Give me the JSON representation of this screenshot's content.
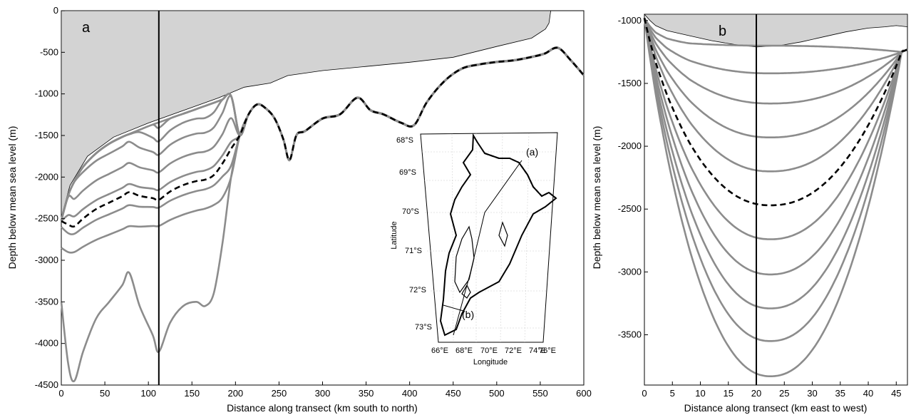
{
  "chart_data": [
    {
      "type": "line",
      "panel_label": "a",
      "xlabel": "Distance along transect (km  south to north)",
      "ylabel": "Depth below mean sea level (m)",
      "xlim": [
        0,
        600
      ],
      "ylim": [
        -4500,
        0
      ],
      "x_ticks": [
        "0",
        "50",
        "100",
        "150",
        "200",
        "250",
        "300",
        "350",
        "400",
        "450",
        "500",
        "550",
        "600"
      ],
      "y_ticks": [
        "0",
        "-500",
        "-1000",
        "-1500",
        "-2000",
        "-2500",
        "-3000",
        "-3500",
        "-4000",
        "-4500"
      ],
      "vertical_line_x": 112,
      "colors": {
        "shelf": "#d3d3d3",
        "iso": "#8c8c8c",
        "dashed": "#000000"
      },
      "shelf_top": {
        "x": [
          0,
          20,
          50,
          100,
          150,
          200,
          250,
          300,
          350,
          400,
          450,
          500,
          540,
          556,
          560,
          600
        ],
        "y": [
          0,
          0,
          0,
          0,
          0,
          0,
          0,
          0,
          0,
          0,
          0,
          0,
          0,
          0,
          0,
          0
        ]
      },
      "shelf_base": {
        "x": [
          0,
          10,
          30,
          60,
          100,
          140,
          180,
          210,
          240,
          260,
          300,
          350,
          400,
          450,
          500,
          540,
          556,
          560,
          562
        ],
        "y": [
          -2480,
          -2100,
          -1750,
          -1520,
          -1350,
          -1200,
          -1050,
          -920,
          -870,
          -780,
          -720,
          -670,
          -620,
          -560,
          -430,
          -330,
          -220,
          -150,
          0
        ]
      },
      "isolines_x": [
        0,
        8,
        15,
        25,
        40,
        55,
        70,
        78,
        90,
        105,
        112,
        125,
        140,
        155,
        165,
        175,
        185,
        195,
        205,
        215,
        225,
        235,
        245,
        255,
        262,
        270,
        280,
        300,
        320,
        340,
        355,
        370,
        390,
        405,
        420,
        440,
        460,
        480,
        500,
        520,
        540,
        555,
        570,
        585,
        600
      ],
      "isolines": [
        {
          "base": -2850,
          "amp": 0.1
        },
        {
          "base": -2600,
          "amp": 0.13
        },
        {
          "base": -2350,
          "amp": 0.17
        },
        {
          "base": -2100,
          "amp": 0.21
        },
        {
          "base": -1850,
          "amp": 0.25
        },
        {
          "base": -1650,
          "amp": 0.29
        },
        {
          "base": -1450,
          "amp": 0.33
        },
        {
          "base": -1300,
          "amp": 0.37
        }
      ],
      "dashed_isoline": {
        "base": -2450,
        "amp": 0.19
      },
      "bed": {
        "x": [
          0,
          8,
          15,
          25,
          40,
          55,
          70,
          78,
          90,
          105,
          112,
          125,
          140,
          155,
          165,
          175,
          185,
          195,
          205,
          215,
          225,
          235,
          245,
          255,
          262,
          270,
          280,
          300,
          320,
          340,
          355,
          370,
          390,
          405,
          420,
          440,
          460,
          480,
          500,
          520,
          540,
          555,
          570,
          585,
          600
        ],
        "y": [
          -3500,
          -4250,
          -4450,
          -4100,
          -3700,
          -3500,
          -3300,
          -3150,
          -3550,
          -3900,
          -4100,
          -3750,
          -3550,
          -3500,
          -3550,
          -3400,
          -2800,
          -2000,
          -1500,
          -1250,
          -1130,
          -1180,
          -1300,
          -1550,
          -1800,
          -1500,
          -1450,
          -1300,
          -1250,
          -1050,
          -1200,
          -1250,
          -1350,
          -1380,
          -1100,
          -850,
          -700,
          -650,
          -620,
          -600,
          -560,
          -520,
          -450,
          -600,
          -780
        ]
      }
    },
    {
      "type": "line",
      "panel_label": "b",
      "xlabel": "Distance along transect (km east to west)",
      "ylabel": "Depth below mean sea level (m)",
      "xlim": [
        0,
        47
      ],
      "ylim": [
        -3900,
        -950
      ],
      "x_ticks": [
        "0",
        "5",
        "10",
        "15",
        "20",
        "25",
        "30",
        "35",
        "40",
        "45"
      ],
      "y_ticks": [
        "-1000",
        "-1500",
        "-2000",
        "-2500",
        "-3000",
        "-3500"
      ],
      "vertical_line_x": 20,
      "colors": {
        "shelf": "#d3d3d3",
        "iso": "#8c8c8c",
        "dashed": "#000000"
      },
      "shelf_base": {
        "x": [
          0,
          1,
          2,
          4,
          8,
          12,
          16,
          20,
          24,
          28,
          32,
          36,
          40,
          43,
          45,
          47
        ],
        "y": [
          -950,
          -1000,
          -1040,
          -1080,
          -1120,
          -1160,
          -1190,
          -1210,
          -1200,
          -1170,
          -1130,
          -1090,
          -1060,
          -1050,
          -1040,
          -1050
        ]
      },
      "trough_center": 22.5,
      "isoline_depths": [
        -1200,
        -1420,
        -1660,
        -1930,
        -2200,
        -2740,
        -3020,
        -3290,
        -3550,
        -3830
      ],
      "dashed_depth": -2470
    }
  ],
  "inset": {
    "lat_labels": [
      "68°S",
      "69°S",
      "70°S",
      "71°S",
      "72°S",
      "73°S"
    ],
    "lon_labels": [
      "66°E",
      "68°E",
      "70°E",
      "72°E",
      "74°E",
      "76°E"
    ],
    "xlabel": "Longitude",
    "ylabel": "Latitude",
    "label_a": "(a)",
    "label_b": "(b)"
  }
}
